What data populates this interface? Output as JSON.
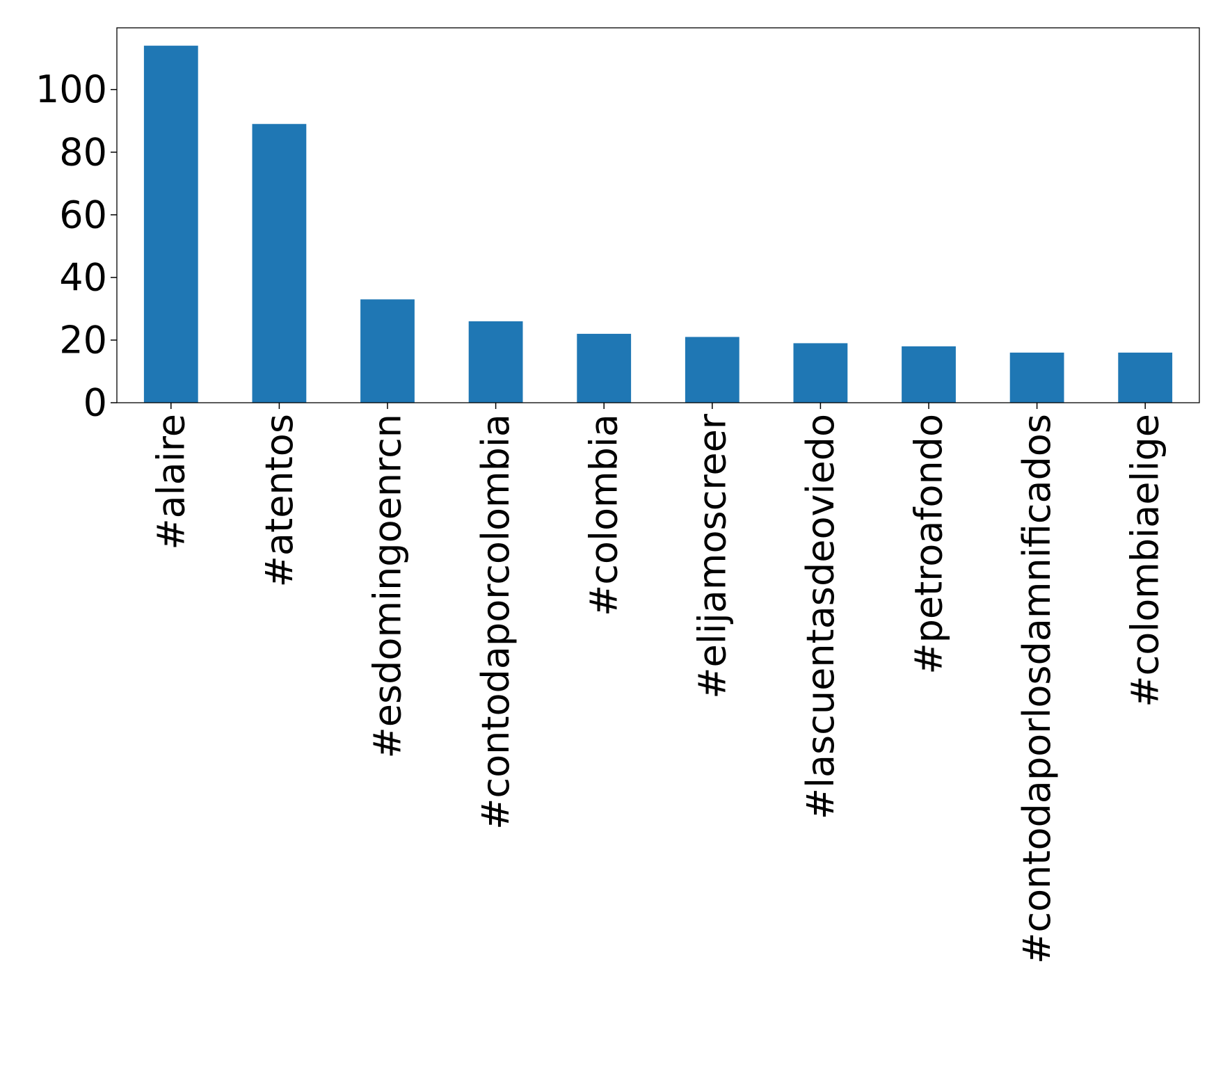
{
  "chart_data": {
    "type": "bar",
    "title": "",
    "xlabel": "",
    "ylabel": "",
    "categories": [
      "#alaire",
      "#atentos",
      "#esdomingoenrcn",
      "#contodaporcolombia",
      "#colombia",
      "#elijamoscreer",
      "#lascuentasdeoviedo",
      "#petroafondo",
      "#contodaporlosdamnificados",
      "#colombiaelige"
    ],
    "values": [
      114,
      89,
      33,
      26,
      22,
      21,
      19,
      18,
      16,
      16
    ],
    "ylim": [
      0,
      119.7
    ],
    "yticks": [
      0,
      20,
      40,
      60,
      80,
      100
    ],
    "grid": false,
    "legend": "none",
    "colors": {
      "bar": "#1f77b4",
      "axis": "#000000",
      "background": "#ffffff"
    }
  }
}
